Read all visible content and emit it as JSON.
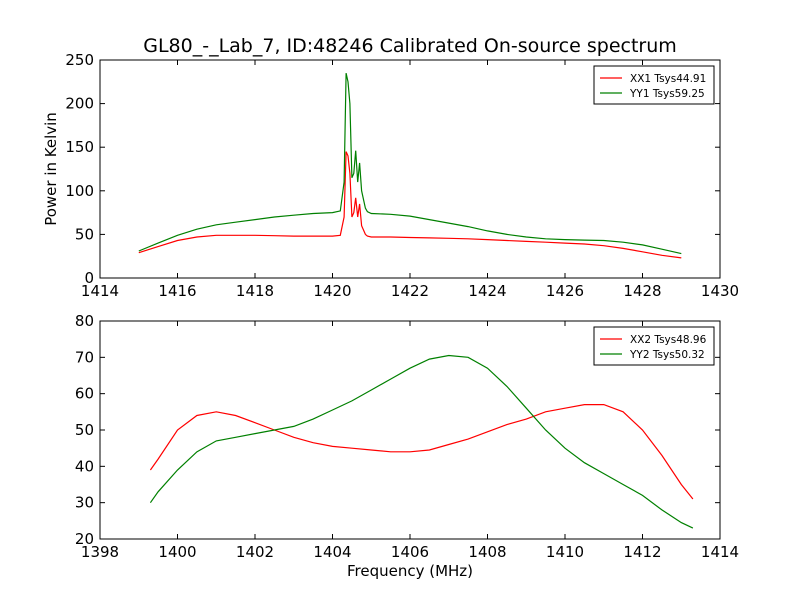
{
  "figure_title": "GL80_-_Lab_7, ID:48246 Calibrated On-source spectrum",
  "chart_data": [
    {
      "type": "line",
      "title": "",
      "xlabel": "",
      "ylabel": "Power in Kelvin",
      "xlim": [
        1414,
        1430
      ],
      "ylim": [
        0,
        250
      ],
      "xticks": [
        1414,
        1416,
        1418,
        1420,
        1422,
        1424,
        1426,
        1428,
        1430
      ],
      "yticks": [
        0,
        50,
        100,
        150,
        200,
        250
      ],
      "legend_position": "top-right",
      "grid": false,
      "series": [
        {
          "name": "XX1 Tsys44.91",
          "color": "#ff0000",
          "x": [
            1415,
            1415.5,
            1416,
            1416.5,
            1417,
            1417.5,
            1418,
            1418.5,
            1419,
            1419.5,
            1420,
            1420.2,
            1420.3,
            1420.35,
            1420.4,
            1420.45,
            1420.5,
            1420.55,
            1420.6,
            1420.65,
            1420.7,
            1420.75,
            1420.8,
            1420.85,
            1420.9,
            1421,
            1421.5,
            1422,
            1422.5,
            1423,
            1423.5,
            1424,
            1424.5,
            1425,
            1425.5,
            1426,
            1426.5,
            1427,
            1427.5,
            1428,
            1428.5,
            1429
          ],
          "y": [
            29,
            36,
            43,
            47,
            49,
            49,
            49,
            48.5,
            48,
            48,
            48,
            49,
            70,
            145,
            140,
            120,
            70,
            75,
            92,
            70,
            85,
            60,
            55,
            50,
            48,
            47,
            47,
            46.5,
            46,
            45.5,
            45,
            44,
            43,
            42,
            41,
            40,
            39,
            37,
            34,
            30,
            26,
            23
          ]
        },
        {
          "name": "YY1 Tsys59.25",
          "color": "#008000",
          "x": [
            1415,
            1415.5,
            1416,
            1416.5,
            1417,
            1417.5,
            1418,
            1418.5,
            1419,
            1419.5,
            1420,
            1420.2,
            1420.3,
            1420.35,
            1420.4,
            1420.45,
            1420.5,
            1420.55,
            1420.6,
            1420.65,
            1420.7,
            1420.75,
            1420.8,
            1420.85,
            1420.9,
            1421,
            1421.5,
            1422,
            1422.5,
            1423,
            1423.5,
            1424,
            1424.5,
            1425,
            1425.5,
            1426,
            1426.5,
            1427,
            1427.5,
            1428,
            1428.5,
            1429
          ],
          "y": [
            31,
            40,
            49,
            56,
            61,
            64,
            67,
            70,
            72,
            74,
            75,
            77,
            110,
            235,
            225,
            200,
            115,
            120,
            146,
            110,
            132,
            100,
            90,
            80,
            76,
            74,
            73,
            71,
            67,
            63,
            59,
            54,
            50,
            47,
            45,
            44,
            43.5,
            43,
            41,
            38,
            33,
            28
          ]
        }
      ]
    },
    {
      "type": "line",
      "title": "",
      "xlabel": "Frequency (MHz)",
      "ylabel": "",
      "xlim": [
        1398,
        1414
      ],
      "ylim": [
        20,
        80
      ],
      "xticks": [
        1398,
        1400,
        1402,
        1404,
        1406,
        1408,
        1410,
        1412,
        1414
      ],
      "yticks": [
        20,
        30,
        40,
        50,
        60,
        70,
        80
      ],
      "legend_position": "top-right",
      "grid": false,
      "series": [
        {
          "name": "XX2 Tsys48.96",
          "color": "#ff0000",
          "x": [
            1399.3,
            1399.5,
            1400,
            1400.5,
            1401,
            1401.5,
            1402,
            1402.5,
            1403,
            1403.5,
            1404,
            1404.5,
            1405,
            1405.5,
            1406,
            1406.5,
            1407,
            1407.5,
            1408,
            1408.5,
            1409,
            1409.5,
            1410,
            1410.5,
            1411,
            1411.5,
            1412,
            1412.5,
            1413,
            1413.3
          ],
          "y": [
            39,
            42,
            50,
            54,
            55,
            54,
            52,
            50,
            48,
            46.5,
            45.5,
            45,
            44.5,
            44,
            44,
            44.5,
            46,
            47.5,
            49.5,
            51.5,
            53,
            55,
            56,
            57,
            57,
            55,
            50,
            43,
            35,
            31
          ]
        },
        {
          "name": "YY2 Tsys50.32",
          "color": "#008000",
          "x": [
            1399.3,
            1399.5,
            1400,
            1400.5,
            1401,
            1401.5,
            1402,
            1402.5,
            1403,
            1403.5,
            1404,
            1404.5,
            1405,
            1405.5,
            1406,
            1406.5,
            1407,
            1407.5,
            1408,
            1408.5,
            1409,
            1409.5,
            1410,
            1410.5,
            1411,
            1411.5,
            1412,
            1412.5,
            1413,
            1413.3
          ],
          "y": [
            30,
            33,
            39,
            44,
            47,
            48,
            49,
            50,
            51,
            53,
            55.5,
            58,
            61,
            64,
            67,
            69.5,
            70.5,
            70,
            67,
            62,
            56,
            50,
            45,
            41,
            38,
            35,
            32,
            28,
            24.5,
            23
          ]
        }
      ]
    }
  ]
}
